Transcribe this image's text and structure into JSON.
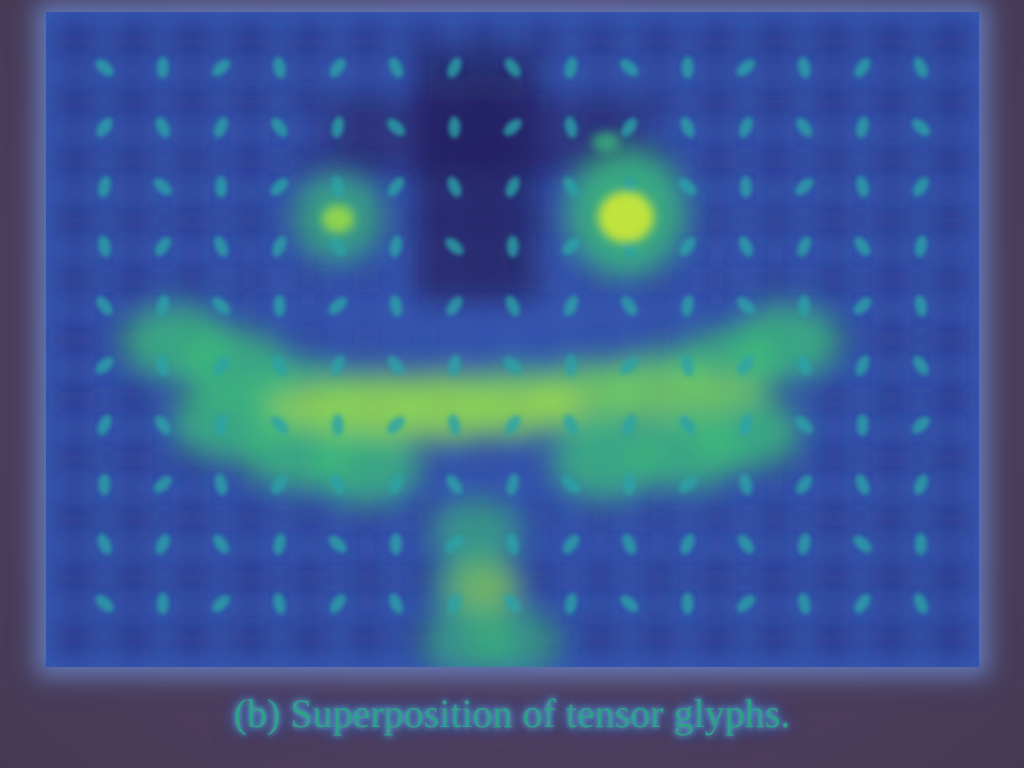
{
  "caption": "(b) Superposition of tensor glyphs.",
  "figure": {
    "description_label": "tensor-glyph-superposition-heatmap",
    "palette": {
      "low": "#2b2f7a",
      "mid_low": "#3b5fc4",
      "mid": "#2aa3a8",
      "mid_high": "#3cc07a",
      "high": "#c8e63a"
    }
  }
}
